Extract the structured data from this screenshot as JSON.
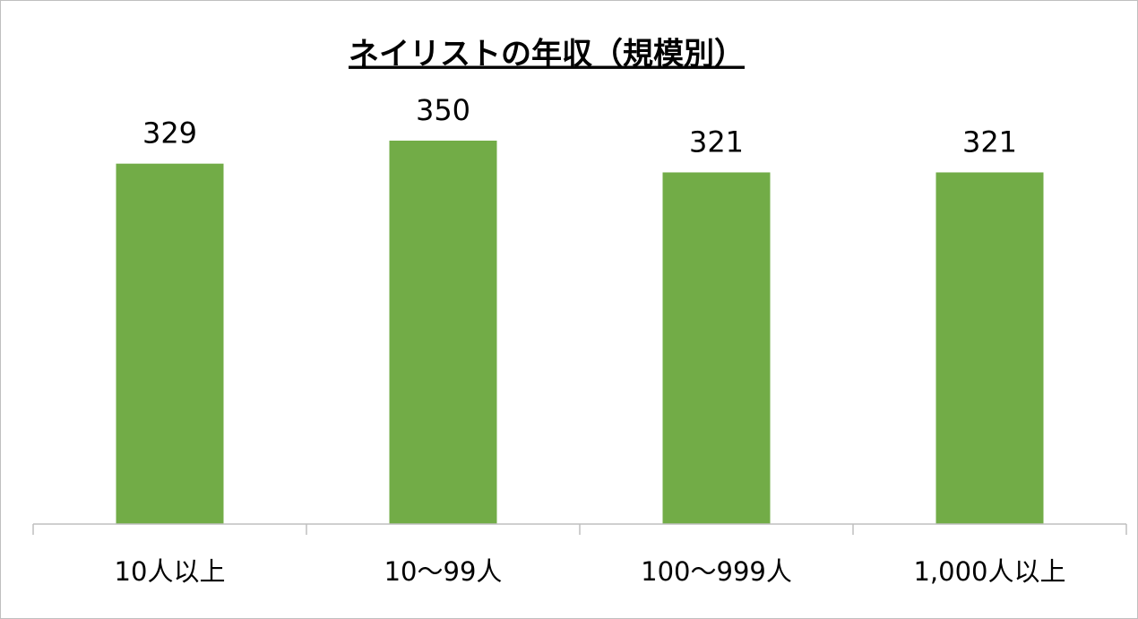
{
  "chart_data": {
    "type": "bar",
    "title": "ネイリストの年収（規模別）",
    "categories": [
      "10人以上",
      "10〜99人",
      "100〜999人",
      "1,000人以上"
    ],
    "values": [
      329,
      350,
      321,
      321
    ],
    "color": "#72ac47"
  }
}
